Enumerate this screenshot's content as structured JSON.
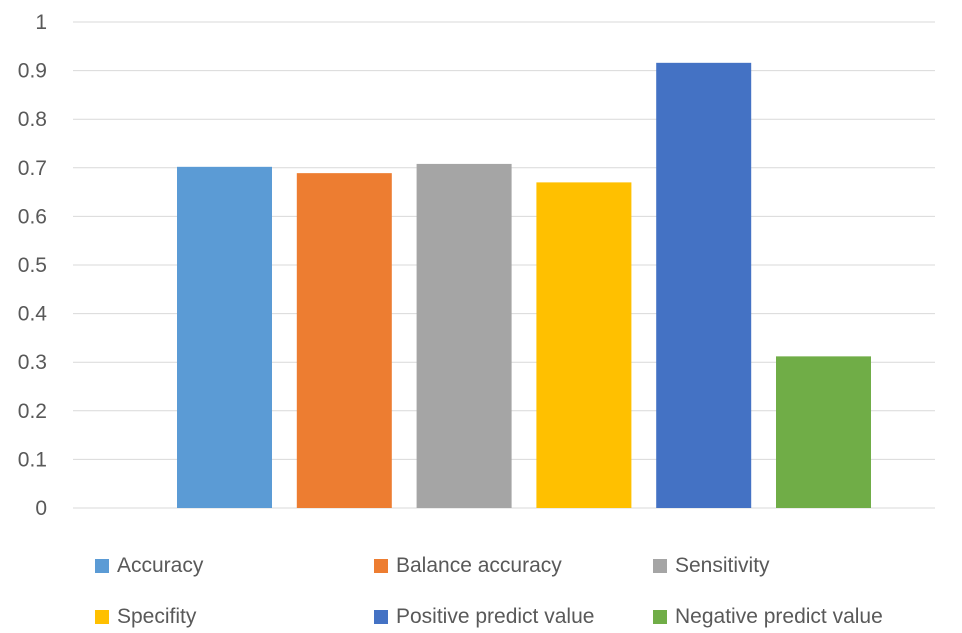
{
  "chart_data": {
    "type": "bar",
    "title": "",
    "xlabel": "",
    "ylabel": "",
    "ylim": [
      0,
      1
    ],
    "yticks": [
      "0",
      "0.1",
      "0.2",
      "0.3",
      "0.4",
      "0.5",
      "0.6",
      "0.7",
      "0.8",
      "0.9",
      "1"
    ],
    "grid": true,
    "legend_position": "bottom",
    "series": [
      {
        "name": "Accuracy",
        "value": 0.702,
        "color": "#5B9BD5"
      },
      {
        "name": "Balance accuracy",
        "value": 0.689,
        "color": "#ED7D31"
      },
      {
        "name": "Sensitivity",
        "value": 0.708,
        "color": "#A5A5A5"
      },
      {
        "name": "Specifity",
        "value": 0.67,
        "color": "#FFC000"
      },
      {
        "name": "Positive predict value",
        "value": 0.916,
        "color": "#4472C4"
      },
      {
        "name": "Negative predict value",
        "value": 0.312,
        "color": "#70AD47"
      }
    ]
  }
}
